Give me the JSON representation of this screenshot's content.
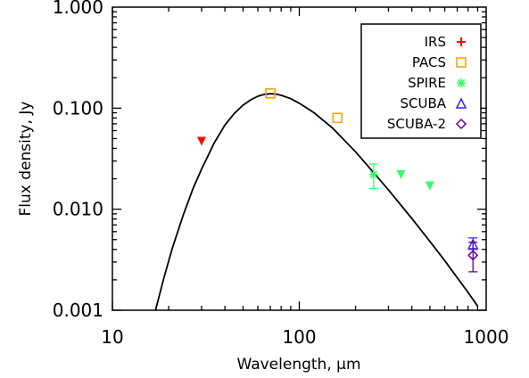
{
  "chart_data": {
    "type": "scatter",
    "title": "",
    "xlabel": "Wavelength, μm",
    "ylabel": "Flux density, Jy",
    "xscale": "log",
    "yscale": "log",
    "xlim": [
      10,
      1000
    ],
    "ylim": [
      0.001,
      1.0
    ],
    "x_ticks": [
      10,
      100,
      1000
    ],
    "x_tick_labels": [
      "10",
      "100",
      "1000"
    ],
    "y_ticks": [
      0.001,
      0.01,
      0.1,
      1.0
    ],
    "y_tick_labels": [
      "0.001",
      "0.010",
      "0.100",
      "1.000"
    ],
    "legend_position": "top-right",
    "series": [
      {
        "name": "IRS",
        "color": "#ff0000",
        "marker": "plus",
        "points": [
          {
            "x": 30,
            "y": 0.047,
            "upper_limit": true
          }
        ]
      },
      {
        "name": "PACS",
        "color": "#ff9900",
        "marker": "square",
        "points": [
          {
            "x": 70,
            "y": 0.14
          },
          {
            "x": 160,
            "y": 0.08
          }
        ]
      },
      {
        "name": "SPIRE",
        "color": "#33ff66",
        "marker": "asterisk",
        "points": [
          {
            "x": 250,
            "y": 0.022,
            "err_low": 0.016,
            "err_high": 0.028
          },
          {
            "x": 350,
            "y": 0.022,
            "upper_limit": true
          },
          {
            "x": 500,
            "y": 0.017,
            "upper_limit": true
          }
        ]
      },
      {
        "name": "SCUBA",
        "color": "#3322ff",
        "marker": "triangle",
        "points": [
          {
            "x": 850,
            "y": 0.0045,
            "err_low": 0.004,
            "err_high": 0.0052
          }
        ]
      },
      {
        "name": "SCUBA-2",
        "color": "#660099",
        "marker": "diamond",
        "points": [
          {
            "x": 850,
            "y": 0.0035,
            "err_low": 0.0024,
            "err_high": 0.0047
          }
        ]
      }
    ],
    "model_curve": {
      "color": "#000000",
      "x": [
        17,
        19,
        21,
        24,
        27,
        30,
        35,
        40,
        45,
        50,
        55,
        60,
        65,
        70,
        75,
        80,
        90,
        100,
        120,
        150,
        200,
        250,
        300,
        400,
        500,
        600,
        700,
        800,
        900
      ],
      "y": [
        0.001,
        0.0022,
        0.0042,
        0.0089,
        0.016,
        0.025,
        0.045,
        0.068,
        0.089,
        0.107,
        0.121,
        0.131,
        0.137,
        0.139,
        0.138,
        0.134,
        0.124,
        0.112,
        0.09,
        0.064,
        0.037,
        0.023,
        0.0155,
        0.0081,
        0.0048,
        0.0031,
        0.0021,
        0.0015,
        0.0011
      ]
    }
  }
}
